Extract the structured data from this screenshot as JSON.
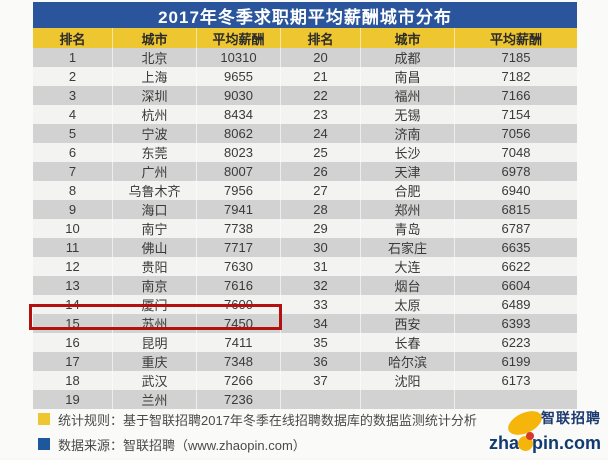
{
  "title": "2017年冬季求职期平均薪酬城市分布",
  "table": {
    "headers": [
      "排名",
      "城市",
      "平均薪酬",
      "排名",
      "城市",
      "平均薪酬"
    ]
  },
  "chart_data": {
    "type": "table",
    "title": "2017年冬季求职期平均薪酬城市分布",
    "columns": [
      "排名",
      "城市",
      "平均薪酬"
    ],
    "highlight": {
      "rank": "15",
      "city": "苏州",
      "salary": "7450",
      "style": "red-box-outline"
    },
    "rows": [
      {
        "left": {
          "rank": "1",
          "city": "北京",
          "salary": "10310"
        },
        "right": {
          "rank": "20",
          "city": "成都",
          "salary": "7185"
        }
      },
      {
        "left": {
          "rank": "2",
          "city": "上海",
          "salary": "9655"
        },
        "right": {
          "rank": "21",
          "city": "南昌",
          "salary": "7182"
        }
      },
      {
        "left": {
          "rank": "3",
          "city": "深圳",
          "salary": "9030"
        },
        "right": {
          "rank": "22",
          "city": "福州",
          "salary": "7166"
        }
      },
      {
        "left": {
          "rank": "4",
          "city": "杭州",
          "salary": "8434"
        },
        "right": {
          "rank": "23",
          "city": "无锡",
          "salary": "7154"
        }
      },
      {
        "left": {
          "rank": "5",
          "city": "宁波",
          "salary": "8062"
        },
        "right": {
          "rank": "24",
          "city": "济南",
          "salary": "7056"
        }
      },
      {
        "left": {
          "rank": "6",
          "city": "东莞",
          "salary": "8023"
        },
        "right": {
          "rank": "25",
          "city": "长沙",
          "salary": "7048"
        }
      },
      {
        "left": {
          "rank": "7",
          "city": "广州",
          "salary": "8007"
        },
        "right": {
          "rank": "26",
          "city": "天津",
          "salary": "6978"
        }
      },
      {
        "left": {
          "rank": "8",
          "city": "乌鲁木齐",
          "salary": "7956"
        },
        "right": {
          "rank": "27",
          "city": "合肥",
          "salary": "6940"
        }
      },
      {
        "left": {
          "rank": "9",
          "city": "海口",
          "salary": "7941"
        },
        "right": {
          "rank": "28",
          "city": "郑州",
          "salary": "6815"
        }
      },
      {
        "left": {
          "rank": "10",
          "city": "南宁",
          "salary": "7738"
        },
        "right": {
          "rank": "29",
          "city": "青岛",
          "salary": "6787"
        }
      },
      {
        "left": {
          "rank": "11",
          "city": "佛山",
          "salary": "7717"
        },
        "right": {
          "rank": "30",
          "city": "石家庄",
          "salary": "6635"
        }
      },
      {
        "left": {
          "rank": "12",
          "city": "贵阳",
          "salary": "7630"
        },
        "right": {
          "rank": "31",
          "city": "大连",
          "salary": "6622"
        }
      },
      {
        "left": {
          "rank": "13",
          "city": "南京",
          "salary": "7616"
        },
        "right": {
          "rank": "32",
          "city": "烟台",
          "salary": "6604"
        }
      },
      {
        "left": {
          "rank": "14",
          "city": "厦门",
          "salary": "7600"
        },
        "right": {
          "rank": "33",
          "city": "太原",
          "salary": "6489"
        }
      },
      {
        "left": {
          "rank": "15",
          "city": "苏州",
          "salary": "7450"
        },
        "right": {
          "rank": "34",
          "city": "西安",
          "salary": "6393"
        }
      },
      {
        "left": {
          "rank": "16",
          "city": "昆明",
          "salary": "7411"
        },
        "right": {
          "rank": "35",
          "city": "长春",
          "salary": "6223"
        }
      },
      {
        "left": {
          "rank": "17",
          "city": "重庆",
          "salary": "7348"
        },
        "right": {
          "rank": "36",
          "city": "哈尔滨",
          "salary": "6199"
        }
      },
      {
        "left": {
          "rank": "18",
          "city": "武汉",
          "salary": "7266"
        },
        "right": {
          "rank": "37",
          "city": "沈阳",
          "salary": "6173"
        }
      },
      {
        "left": {
          "rank": "19",
          "city": "兰州",
          "salary": "7236"
        },
        "right": {
          "rank": "",
          "city": "",
          "salary": ""
        }
      }
    ]
  },
  "footer": {
    "legend": [
      {
        "bullet_color": "#eec62f",
        "text": "统计规则：基于智联招聘2017年冬季在线招聘数据库的数据监测统计分析"
      },
      {
        "bullet_color": "#1d579e",
        "text": "数据来源：智联招聘（www.zhaopin.com）"
      }
    ],
    "logo": {
      "brand": "智联招聘",
      "url_prefix": "zha",
      "url_suffix": "pin.com"
    }
  },
  "colors": {
    "title_bg": "#2a549b",
    "header_bg": "#eec62f",
    "row_odd": "#d2d2d2",
    "row_even": "#f3f3f2",
    "highlight_border": "#b31010",
    "logo_navy": "#1b3a70",
    "logo_yellow": "#f5b50a",
    "logo_red": "#d8382c"
  }
}
